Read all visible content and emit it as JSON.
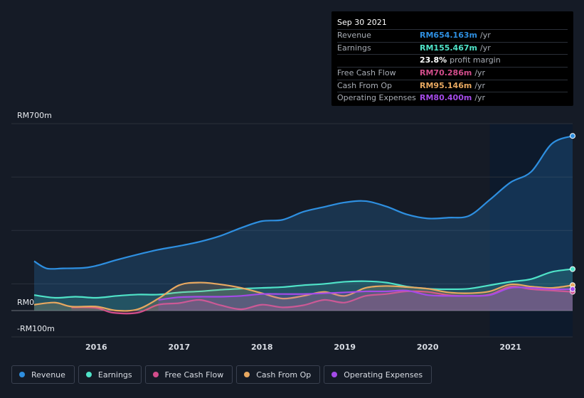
{
  "chart_data": {
    "type": "area",
    "title": "",
    "ylim": [
      -100,
      700
    ],
    "y_unit_labels": {
      "top": "RM700m",
      "zero": "RM0",
      "bottom": "-RM100m"
    },
    "x_ticks": [
      "2016",
      "2017",
      "2018",
      "2019",
      "2020",
      "2021"
    ],
    "x_tick_values": [
      2016,
      2017,
      2018,
      2019,
      2020,
      2021
    ],
    "x_range": [
      2015.25,
      2021.75
    ],
    "highlight_start": 2020.75,
    "series": [
      {
        "name": "Revenue",
        "color": "#2e8fe0",
        "x": [
          2015.25,
          2015.4,
          2015.6,
          2015.85,
          2016.0,
          2016.25,
          2016.5,
          2016.75,
          2017.0,
          2017.25,
          2017.5,
          2017.75,
          2018.0,
          2018.25,
          2018.5,
          2018.75,
          2019.0,
          2019.25,
          2019.5,
          2019.75,
          2020.0,
          2020.25,
          2020.5,
          2020.75,
          2021.0,
          2021.25,
          2021.5,
          2021.75
        ],
        "values": [
          185,
          158,
          158,
          160,
          168,
          190,
          210,
          228,
          242,
          258,
          280,
          310,
          335,
          340,
          370,
          388,
          405,
          410,
          390,
          360,
          345,
          348,
          355,
          415,
          480,
          520,
          625,
          654.163
        ]
      },
      {
        "name": "Earnings",
        "color": "#4fe3c8",
        "x": [
          2015.25,
          2015.5,
          2015.75,
          2016.0,
          2016.25,
          2016.5,
          2016.75,
          2017.0,
          2017.25,
          2017.5,
          2017.75,
          2018.0,
          2018.25,
          2018.5,
          2018.75,
          2019.0,
          2019.25,
          2019.5,
          2019.75,
          2020.0,
          2020.25,
          2020.5,
          2020.75,
          2021.0,
          2021.25,
          2021.5,
          2021.75
        ],
        "values": [
          58,
          48,
          52,
          48,
          55,
          60,
          60,
          68,
          72,
          78,
          82,
          85,
          88,
          95,
          100,
          108,
          110,
          105,
          90,
          82,
          80,
          82,
          95,
          108,
          118,
          145,
          155.467
        ]
      },
      {
        "name": "Free Cash Flow",
        "color": "#d24d8b",
        "x": [
          2015.7,
          2016.0,
          2016.2,
          2016.5,
          2016.75,
          2017.0,
          2017.25,
          2017.5,
          2017.75,
          2018.0,
          2018.25,
          2018.5,
          2018.75,
          2019.0,
          2019.25,
          2019.5,
          2019.75,
          2020.0,
          2020.25,
          2020.5,
          2020.75,
          2021.0,
          2021.25,
          2021.5,
          2021.75
        ],
        "values": [
          12,
          10,
          -8,
          -8,
          22,
          28,
          40,
          20,
          5,
          22,
          12,
          20,
          40,
          30,
          55,
          62,
          72,
          70,
          58,
          55,
          60,
          90,
          80,
          75,
          70.286
        ]
      },
      {
        "name": "Cash From Op",
        "color": "#e8a860",
        "x": [
          2015.25,
          2015.5,
          2015.7,
          2016.0,
          2016.25,
          2016.5,
          2016.75,
          2017.0,
          2017.25,
          2017.5,
          2017.75,
          2018.0,
          2018.25,
          2018.5,
          2018.75,
          2019.0,
          2019.25,
          2019.5,
          2019.75,
          2020.0,
          2020.25,
          2020.5,
          2020.75,
          2021.0,
          2021.25,
          2021.5,
          2021.75
        ],
        "values": [
          22,
          30,
          15,
          15,
          0,
          5,
          45,
          95,
          105,
          98,
          85,
          65,
          45,
          55,
          70,
          55,
          85,
          92,
          88,
          82,
          68,
          65,
          72,
          98,
          90,
          85,
          95.146
        ]
      },
      {
        "name": "Operating Expenses",
        "color": "#a44be8",
        "x": [
          2016.75,
          2017.0,
          2017.25,
          2017.5,
          2017.75,
          2018.0,
          2018.25,
          2018.5,
          2018.75,
          2019.0,
          2019.25,
          2019.5,
          2019.75,
          2020.0,
          2020.25,
          2020.5,
          2020.75,
          2021.0,
          2021.25,
          2021.5,
          2021.75
        ],
        "values": [
          40,
          50,
          52,
          52,
          55,
          62,
          62,
          62,
          65,
          68,
          72,
          72,
          75,
          58,
          55,
          55,
          58,
          85,
          85,
          80,
          80.4
        ]
      }
    ]
  },
  "tooltip": {
    "date": "Sep 30 2021",
    "rows": [
      {
        "label": "Revenue",
        "value": "RM654.163m",
        "unit": "/yr",
        "color": "#2e8fe0"
      },
      {
        "label": "Earnings",
        "value": "RM155.467m",
        "unit": "/yr",
        "color": "#4fe3c8"
      },
      {
        "label": "",
        "value": "23.8%",
        "unit": "profit margin",
        "color": "#ffffff"
      },
      {
        "label": "Free Cash Flow",
        "value": "RM70.286m",
        "unit": "/yr",
        "color": "#d24d8b"
      },
      {
        "label": "Cash From Op",
        "value": "RM95.146m",
        "unit": "/yr",
        "color": "#e8a860"
      },
      {
        "label": "Operating Expenses",
        "value": "RM80.400m",
        "unit": "/yr",
        "color": "#a44be8"
      }
    ]
  },
  "legend": [
    {
      "label": "Revenue",
      "color": "#2e8fe0"
    },
    {
      "label": "Earnings",
      "color": "#4fe3c8"
    },
    {
      "label": "Free Cash Flow",
      "color": "#d24d8b"
    },
    {
      "label": "Cash From Op",
      "color": "#e8a860"
    },
    {
      "label": "Operating Expenses",
      "color": "#a44be8"
    }
  ]
}
